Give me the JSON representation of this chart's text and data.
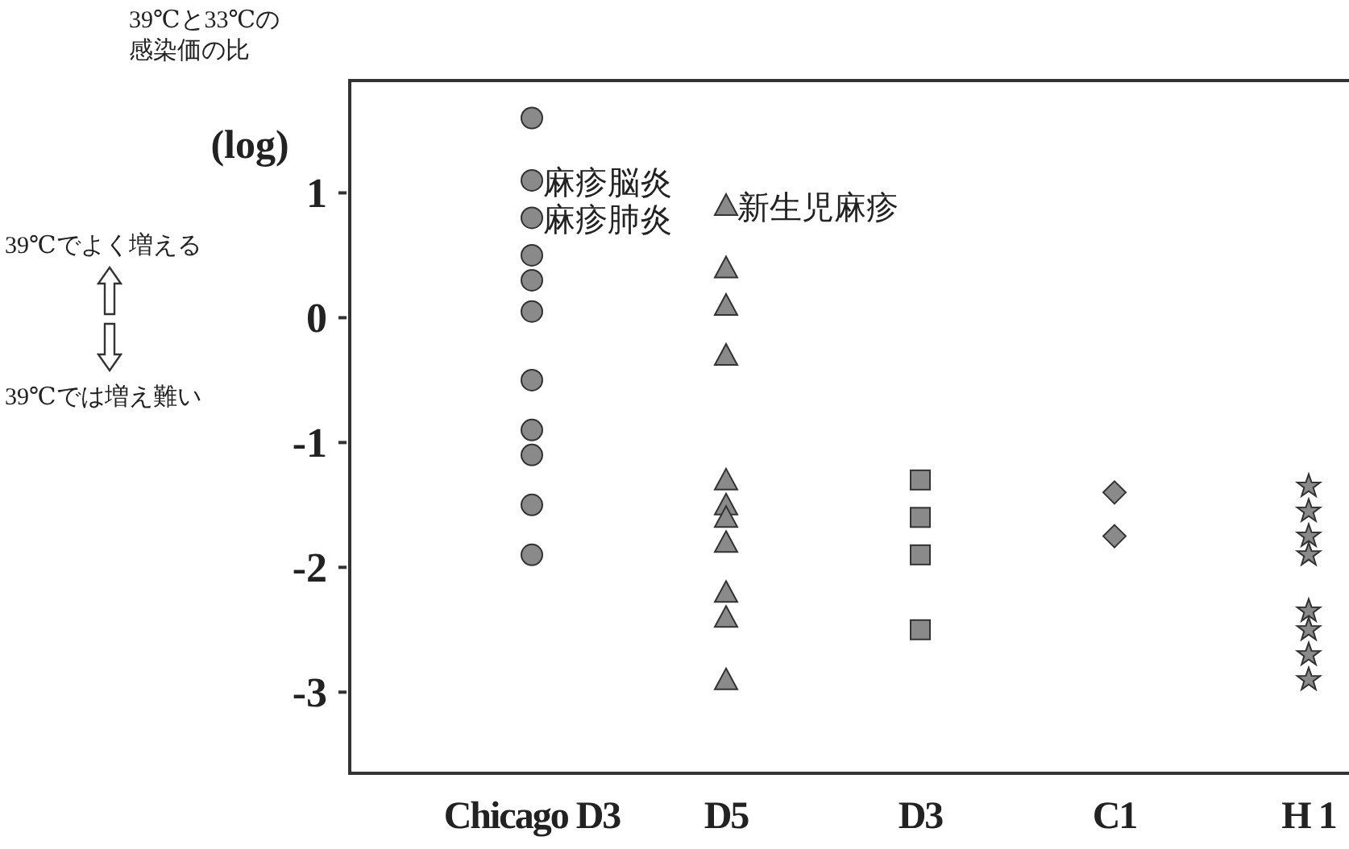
{
  "chart_data": {
    "type": "scatter",
    "ylabel": "39℃と33℃の感染価の比",
    "categories": [
      "Chicago D3",
      "D5",
      "D3",
      "C1",
      "H 1"
    ],
    "ylim": [
      -3.65,
      1.9
    ],
    "yticks": [
      -3,
      -2,
      -1,
      0,
      1
    ],
    "grid": false,
    "series": [
      {
        "x": [
          "Chicago D3",
          "Chicago D3",
          "Chicago D3",
          "Chicago D3",
          "Chicago D3",
          "Chicago D3",
          "Chicago D3",
          "Chicago D3",
          "Chicago D3",
          "Chicago D3",
          "Chicago D3"
        ],
        "values": [
          1.6,
          1.1,
          0.8,
          0.5,
          0.3,
          0.05,
          -0.5,
          -0.9,
          -1.1,
          -1.5,
          -1.9
        ],
        "color": "#8a8a8a",
        "marker": "circle"
      },
      {
        "x": [
          "D5",
          "D5",
          "D5",
          "D5",
          "D5",
          "D5",
          "D5",
          "D5",
          "D5",
          "D5",
          "D5"
        ],
        "values": [
          0.9,
          0.4,
          0.1,
          -0.3,
          -1.3,
          -1.5,
          -1.6,
          -1.8,
          -2.2,
          -2.4,
          -2.9
        ],
        "color": "#8a8a8a",
        "marker": "triangle"
      },
      {
        "x": [
          "D3",
          "D3",
          "D3",
          "D3"
        ],
        "values": [
          -1.3,
          -1.6,
          -1.9,
          -2.5
        ],
        "color": "#8a8a8a",
        "marker": "square"
      },
      {
        "x": [
          "C1",
          "C1"
        ],
        "values": [
          -1.4,
          -1.75
        ],
        "color": "#8a8a8a",
        "marker": "diamond"
      },
      {
        "x": [
          "H 1",
          "H 1",
          "H 1",
          "H 1",
          "H 1",
          "H 1",
          "H 1",
          "H 1"
        ],
        "values": [
          -1.35,
          -1.55,
          -1.75,
          -1.9,
          -2.35,
          -2.5,
          -2.7,
          -2.9
        ],
        "color": "#8a8a8a",
        "marker": "star"
      }
    ],
    "annotations": [
      "(log)",
      "39℃でよく増える",
      "39℃では増え難い",
      {
        "text": "麻疹脳炎",
        "x": "Chicago D3",
        "y": 1.1
      },
      {
        "text": "麻疹肺炎",
        "x": "Chicago D3",
        "y": 0.8
      },
      {
        "text": "新生児麻疹",
        "x": "D5",
        "y": 0.9
      }
    ]
  }
}
